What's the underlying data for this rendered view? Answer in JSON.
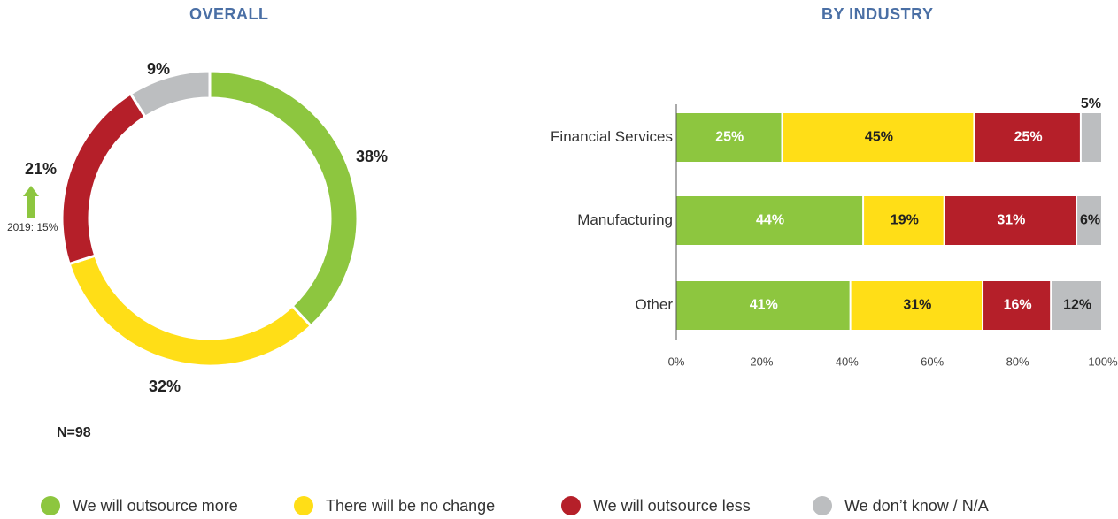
{
  "titles": {
    "overall": "OVERALL",
    "by_industry": "BY INDUSTRY"
  },
  "colors": {
    "outsource_more": "#8dc63f",
    "no_change": "#ffde17",
    "outsource_less": "#b51f29",
    "dont_know": "#bcbec0",
    "title": "#4a6fa5"
  },
  "n_label": "N=98",
  "history_note": "2019: 15%",
  "legend": [
    {
      "label": "We will outsource more",
      "color": "#8dc63f"
    },
    {
      "label": "There will be no change",
      "color": "#ffde17"
    },
    {
      "label": "We will outsource less",
      "color": "#b51f29"
    },
    {
      "label": "We don’t know / N/A",
      "color": "#bcbec0"
    }
  ],
  "chart_data": [
    {
      "type": "pie",
      "title": "OVERALL",
      "donut": true,
      "slices": [
        {
          "label": "We will outsource more",
          "value": 38,
          "display": "38%",
          "color": "#8dc63f"
        },
        {
          "label": "There will be no change",
          "value": 32,
          "display": "32%",
          "color": "#ffde17"
        },
        {
          "label": "We will outsource less",
          "value": 21,
          "display": "21%",
          "color": "#b51f29"
        },
        {
          "label": "We don’t know / N/A",
          "value": 9,
          "display": "9%",
          "color": "#bcbec0"
        }
      ]
    },
    {
      "type": "bar",
      "orientation": "horizontal",
      "stacked": true,
      "title": "BY INDUSTRY",
      "categories": [
        "Financial Services",
        "Manufacturing",
        "Other"
      ],
      "series": [
        {
          "name": "We will outsource more",
          "color": "#8dc63f",
          "values": [
            25,
            44,
            41
          ],
          "labels": [
            "25%",
            "44%",
            "41%"
          ]
        },
        {
          "name": "There will be no change",
          "color": "#ffde17",
          "values": [
            45,
            19,
            31
          ],
          "labels": [
            "45%",
            "19%",
            "31%"
          ]
        },
        {
          "name": "We will outsource less",
          "color": "#b51f29",
          "values": [
            25,
            31,
            16
          ],
          "labels": [
            "25%",
            "31%",
            "16%"
          ]
        },
        {
          "name": "We don’t know / N/A",
          "color": "#bcbec0",
          "values": [
            5,
            6,
            12
          ],
          "labels": [
            "5%",
            "6%",
            "12%"
          ]
        }
      ],
      "xlim": [
        0,
        100
      ],
      "xticks": [
        "0%",
        "20%",
        "40%",
        "60%",
        "80%",
        "100%"
      ],
      "grid": false
    }
  ]
}
